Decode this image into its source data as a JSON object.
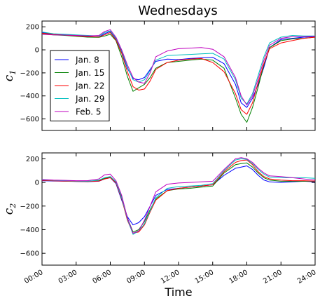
{
  "chart_data": [
    {
      "type": "line",
      "title": "Wednesdays",
      "ylabel": "c",
      "ylabel_sub": "1",
      "xlim": [
        0,
        24
      ],
      "ylim": [
        -700,
        250
      ],
      "yticks": [
        200,
        0,
        -200,
        -400,
        -600
      ],
      "ytick_labels": [
        "200",
        "0",
        "−200",
        "−400",
        "−600"
      ],
      "grid": false,
      "legend_position": "center-left",
      "series": [
        {
          "name": "Jan. 8",
          "color": "#0000ff",
          "x": [
            0,
            1,
            2,
            3,
            4,
            5,
            5.5,
            6,
            6.5,
            7,
            7.5,
            8,
            8.5,
            9,
            9.5,
            10,
            11,
            12,
            13,
            14,
            15,
            16,
            17,
            17.5,
            18,
            18.5,
            19,
            19.5,
            20,
            21,
            22,
            23,
            24
          ],
          "values": [
            150,
            138,
            132,
            128,
            118,
            112,
            140,
            160,
            95,
            -20,
            -160,
            -250,
            -260,
            -240,
            -170,
            -100,
            -80,
            -85,
            -75,
            -70,
            -65,
            -120,
            -300,
            -460,
            -500,
            -420,
            -300,
            -150,
            20,
            90,
            100,
            110,
            115
          ]
        },
        {
          "name": "Jan. 15",
          "color": "#008000",
          "x": [
            0,
            1,
            2,
            3,
            4,
            5,
            5.5,
            6,
            6.5,
            7,
            7.5,
            8,
            8.5,
            9,
            9.5,
            10,
            11,
            12,
            13,
            14,
            15,
            16,
            17,
            17.5,
            18,
            18.5,
            19,
            19.5,
            20,
            21,
            22,
            23,
            24
          ],
          "values": [
            140,
            130,
            125,
            118,
            110,
            108,
            120,
            135,
            80,
            -60,
            -230,
            -360,
            -330,
            -300,
            -240,
            -160,
            -110,
            -100,
            -90,
            -80,
            -90,
            -160,
            -420,
            -560,
            -630,
            -500,
            -320,
            -130,
            20,
            80,
            95,
            100,
            110
          ]
        },
        {
          "name": "Jan. 22",
          "color": "#ff0000",
          "x": [
            0,
            1,
            2,
            3,
            4,
            5,
            5.5,
            6,
            6.5,
            7,
            7.5,
            8,
            8.5,
            9,
            9.5,
            10,
            11,
            12,
            13,
            14,
            15,
            16,
            17,
            17.5,
            18,
            18.5,
            19,
            19.5,
            20,
            21,
            22,
            23,
            24
          ],
          "values": [
            145,
            135,
            128,
            122,
            115,
            112,
            130,
            150,
            85,
            -30,
            -190,
            -320,
            -350,
            -340,
            -270,
            -170,
            -110,
            -90,
            -80,
            -75,
            -110,
            -190,
            -380,
            -520,
            -560,
            -460,
            -280,
            -120,
            10,
            60,
            80,
            100,
            110
          ]
        },
        {
          "name": "Jan. 29",
          "color": "#00bfbf",
          "x": [
            0,
            1,
            2,
            3,
            4,
            5,
            5.5,
            6,
            6.5,
            7,
            7.5,
            8,
            8.5,
            9,
            9.5,
            10,
            11,
            12,
            13,
            14,
            15,
            16,
            17,
            17.5,
            18,
            18.5,
            19,
            19.5,
            20,
            21,
            22,
            23,
            24
          ],
          "values": [
            155,
            140,
            135,
            130,
            125,
            120,
            150,
            165,
            100,
            -10,
            -150,
            -260,
            -280,
            -260,
            -180,
            -90,
            -50,
            -45,
            -40,
            -35,
            -30,
            -80,
            -260,
            -420,
            -470,
            -380,
            -220,
            -60,
            60,
            110,
            125,
            120,
            120
          ]
        },
        {
          "name": "Feb. 5",
          "color": "#bf00bf",
          "x": [
            0,
            1,
            2,
            3,
            4,
            5,
            5.5,
            6,
            6.5,
            7,
            7.5,
            8,
            8.5,
            9,
            9.5,
            10,
            11,
            12,
            13,
            14,
            15,
            16,
            17,
            17.5,
            18,
            18.5,
            19,
            19.5,
            20,
            21,
            22,
            23,
            24
          ],
          "values": [
            135,
            130,
            128,
            125,
            120,
            125,
            160,
            175,
            110,
            0,
            -130,
            -240,
            -280,
            -290,
            -200,
            -60,
            -10,
            10,
            15,
            20,
            5,
            -60,
            -240,
            -400,
            -480,
            -400,
            -250,
            -90,
            40,
            100,
            115,
            115,
            118
          ]
        }
      ]
    },
    {
      "type": "line",
      "xlabel": "Time",
      "ylabel": "c",
      "ylabel_sub": "2",
      "xlim": [
        0,
        24
      ],
      "ylim": [
        -700,
        250
      ],
      "yticks": [
        200,
        0,
        -200,
        -400,
        -600
      ],
      "ytick_labels": [
        "200",
        "0",
        "−200",
        "−400",
        "−600"
      ],
      "xticks": [
        0,
        3,
        6,
        9,
        12,
        15,
        18,
        21,
        24
      ],
      "xtick_labels": [
        "00:00",
        "03:00",
        "06:00",
        "09:00",
        "12:00",
        "15:00",
        "18:00",
        "21:00",
        "24:00"
      ],
      "grid": false,
      "series": [
        {
          "color": "#0000ff",
          "x": [
            0,
            1,
            2,
            3,
            4,
            5,
            5.5,
            6,
            6.5,
            7,
            7.5,
            8,
            8.5,
            9,
            9.5,
            10,
            11,
            12,
            13,
            14,
            15,
            16,
            17,
            17.5,
            18,
            18.5,
            19,
            19.5,
            20,
            21,
            22,
            23,
            24
          ],
          "values": [
            15,
            12,
            10,
            8,
            6,
            10,
            30,
            40,
            -10,
            -150,
            -290,
            -360,
            -340,
            -290,
            -200,
            -110,
            -60,
            -50,
            -40,
            -30,
            -20,
            60,
            120,
            130,
            140,
            110,
            60,
            20,
            5,
            0,
            5,
            10,
            5
          ]
        },
        {
          "color": "#008000",
          "x": [
            0,
            1,
            2,
            3,
            4,
            5,
            5.5,
            6,
            6.5,
            7,
            7.5,
            8,
            8.5,
            9,
            9.5,
            10,
            11,
            12,
            13,
            14,
            15,
            16,
            17,
            17.5,
            18,
            18.5,
            19,
            19.5,
            20,
            21,
            22,
            23,
            24
          ],
          "values": [
            20,
            15,
            12,
            10,
            8,
            15,
            35,
            45,
            0,
            -120,
            -300,
            -420,
            -400,
            -330,
            -230,
            -140,
            -70,
            -55,
            -50,
            -40,
            -30,
            80,
            150,
            160,
            165,
            130,
            80,
            40,
            20,
            10,
            10,
            10,
            10
          ]
        },
        {
          "color": "#ff0000",
          "x": [
            0,
            1,
            2,
            3,
            4,
            5,
            5.5,
            6,
            6.5,
            7,
            7.5,
            8,
            8.5,
            9,
            9.5,
            10,
            11,
            12,
            13,
            14,
            15,
            16,
            17,
            17.5,
            18,
            18.5,
            19,
            19.5,
            20,
            21,
            22,
            23,
            24
          ],
          "values": [
            18,
            14,
            11,
            9,
            7,
            12,
            30,
            40,
            -5,
            -140,
            -320,
            -430,
            -420,
            -360,
            -250,
            -150,
            -70,
            -50,
            -40,
            -30,
            -20,
            90,
            170,
            185,
            190,
            150,
            90,
            50,
            30,
            20,
            15,
            15,
            12
          ]
        },
        {
          "color": "#00bfbf",
          "x": [
            0,
            1,
            2,
            3,
            4,
            5,
            5.5,
            6,
            6.5,
            7,
            7.5,
            8,
            8.5,
            9,
            9.5,
            10,
            11,
            12,
            13,
            14,
            15,
            16,
            17,
            17.5,
            18,
            18.5,
            19,
            19.5,
            20,
            21,
            22,
            23,
            24
          ],
          "values": [
            22,
            18,
            15,
            12,
            10,
            20,
            40,
            50,
            5,
            -130,
            -310,
            -440,
            -410,
            -350,
            -240,
            -130,
            -50,
            -35,
            -30,
            -25,
            -10,
            100,
            190,
            200,
            195,
            160,
            110,
            70,
            45,
            40,
            40,
            40,
            35
          ]
        },
        {
          "color": "#bf00bf",
          "x": [
            0,
            1,
            2,
            3,
            4,
            5,
            5.5,
            6,
            6.5,
            7,
            7.5,
            8,
            8.5,
            9,
            9.5,
            10,
            11,
            12,
            13,
            14,
            15,
            16,
            17,
            17.5,
            18,
            18.5,
            19,
            19.5,
            20,
            21,
            22,
            23,
            24
          ],
          "values": [
            25,
            20,
            18,
            15,
            15,
            30,
            65,
            70,
            15,
            -110,
            -300,
            -430,
            -410,
            -320,
            -200,
            -80,
            -15,
            -5,
            0,
            5,
            10,
            110,
            200,
            210,
            200,
            170,
            120,
            80,
            55,
            50,
            40,
            30,
            20
          ]
        }
      ]
    }
  ]
}
